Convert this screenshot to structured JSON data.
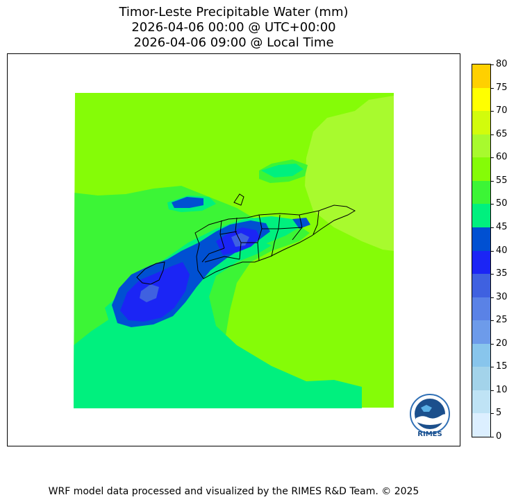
{
  "title": {
    "line1": "Timor-Leste Precipitable Water (mm)",
    "line2": "2026-04-06 00:00 @ UTC+00:00",
    "line3": "2026-04-06 09:00 @ Local Time"
  },
  "colorbar": {
    "levels": [
      0,
      5,
      10,
      15,
      20,
      25,
      30,
      35,
      40,
      45,
      50,
      55,
      60,
      65,
      70,
      75,
      80
    ],
    "labels": [
      "0",
      "5",
      "10",
      "15",
      "20",
      "25",
      "30",
      "35",
      "40",
      "45",
      "50",
      "55",
      "60",
      "65",
      "70",
      "75",
      "80"
    ],
    "colors": [
      "#dcefff",
      "#bfe3f5",
      "#a3d3ea",
      "#88c5ec",
      "#6d9bea",
      "#5a82e6",
      "#3f61e0",
      "#1b25f5",
      "#0050d2",
      "#00f07e",
      "#3cf536",
      "#85fc07",
      "#a8fa2e",
      "#d2fc0c",
      "#ffff00",
      "#ffd000"
    ]
  },
  "logo": {
    "text": "RIMES",
    "icon": "rimes-globe-logo"
  },
  "footer": "WRF model data processed and visualized by the RIMES R&D Team. © 2025"
}
